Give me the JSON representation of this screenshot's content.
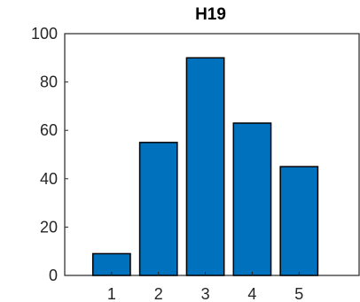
{
  "chart_data": {
    "type": "bar",
    "title": "H19",
    "xlabel": "",
    "ylabel": "",
    "categories": [
      "1",
      "2",
      "3",
      "4",
      "5"
    ],
    "values": [
      9,
      55,
      90,
      63,
      45
    ],
    "ylim": [
      0,
      100
    ],
    "y_ticks": [
      "0",
      "20",
      "40",
      "60",
      "80",
      "100"
    ],
    "grid": false,
    "legend": "none",
    "colors": {
      "bar_fill": "#0072BD",
      "bar_stroke": "#000000",
      "axis": "#262626",
      "background": "#ffffff"
    }
  }
}
